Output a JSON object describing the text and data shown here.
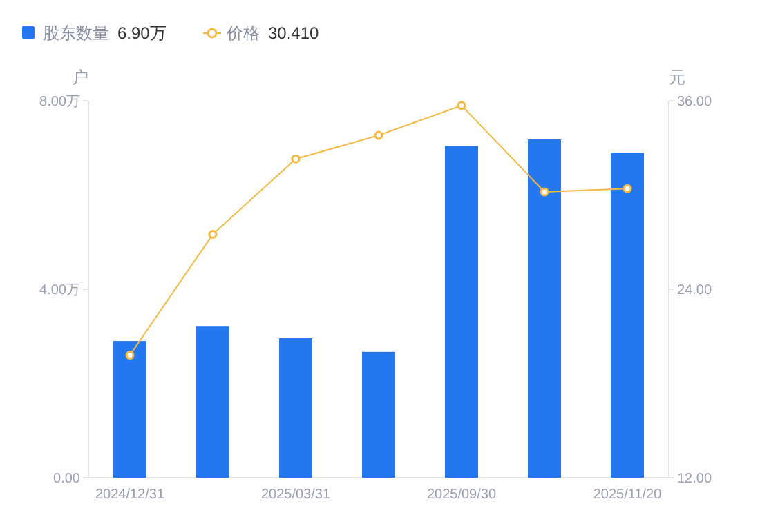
{
  "chart_data": {
    "type": "bar",
    "categories": [
      "2024/12/31",
      null,
      "2025/03/31",
      null,
      "2025/09/30",
      null,
      "2025/11/20"
    ],
    "series": [
      {
        "name": "股东数量",
        "color": "#2577f0",
        "values": [
          2.9,
          3.22,
          2.96,
          2.67,
          7.04,
          7.18,
          6.9
        ]
      },
      {
        "name": "价格",
        "type": "line",
        "axis": "y2",
        "color": "#f5b942",
        "values": [
          19.8,
          27.5,
          32.3,
          33.8,
          35.7,
          30.2,
          30.41
        ]
      }
    ],
    "ylabel": "户",
    "y2label": "元",
    "ylim": [
      0,
      8
    ],
    "yticks": [
      {
        "value": 0,
        "label": "0.00"
      },
      {
        "value": 4,
        "label": "4.00万"
      },
      {
        "value": 8,
        "label": "8.00万"
      }
    ],
    "y2lim": [
      12,
      36
    ],
    "y2ticks": [
      {
        "value": 12,
        "label": "12.00"
      },
      {
        "value": 24,
        "label": "24.00"
      },
      {
        "value": 36,
        "label": "36.00"
      }
    ],
    "annotations": [
      "6.90万",
      "30.410"
    ],
    "legend": "top left",
    "marker": "circle",
    "grid": false
  }
}
